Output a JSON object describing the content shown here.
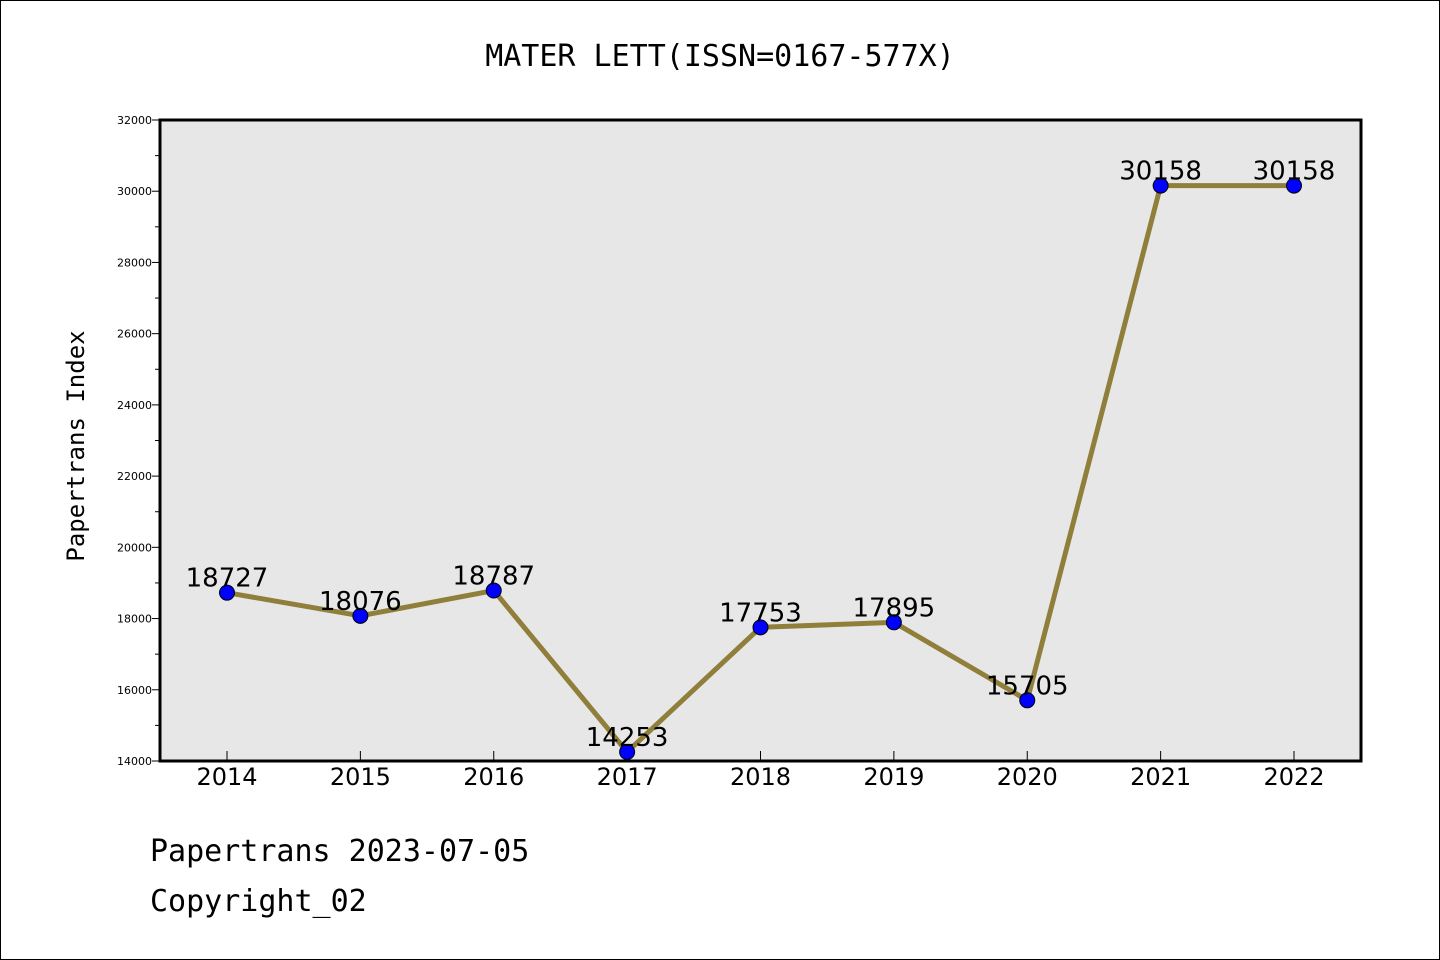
{
  "chart_data": {
    "type": "line",
    "title": "MATER LETT(ISSN=0167-577X)",
    "xlabel": "",
    "ylabel": "Papertrans Index",
    "x": [
      "2014",
      "2015",
      "2016",
      "2017",
      "2018",
      "2019",
      "2020",
      "2021",
      "2022"
    ],
    "series": [
      {
        "values": [
          18727,
          18076,
          18787,
          14253,
          17753,
          17895,
          15705,
          30158,
          30158
        ],
        "line_color": "#8f7f3a",
        "marker_color": "#0000ff"
      }
    ],
    "data_labels": [
      "18727",
      "18076",
      "18787",
      "14253",
      "17753",
      "17895",
      "15705",
      "30158",
      "30158"
    ],
    "ylim": [
      14000,
      32000
    ],
    "yticks": [
      14000,
      16000,
      18000,
      20000,
      22000,
      24000,
      26000,
      28000,
      30000,
      32000
    ],
    "ytick_labels": [
      "14000",
      "16000",
      "18000",
      "20000",
      "22000",
      "24000",
      "26000",
      "28000",
      "30000",
      "32000"
    ],
    "grid": false,
    "plot_background": "#e7e7e7"
  },
  "footer": {
    "line1": "Papertrans 2023-07-05",
    "line2": "Copyright_02"
  }
}
